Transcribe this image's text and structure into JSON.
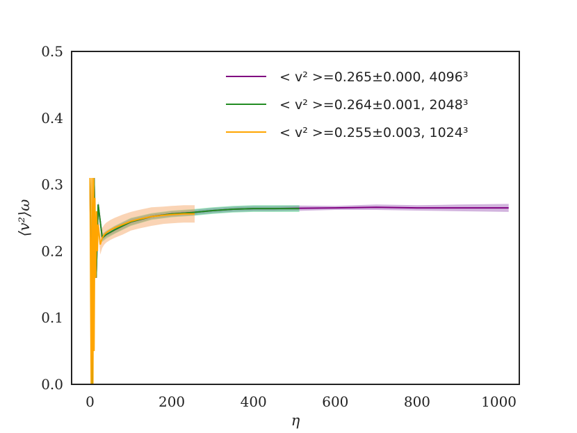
{
  "chart_data": {
    "type": "line",
    "xlabel": "η",
    "ylabel": "⟨v²⟩ω",
    "xlim": [
      -45,
      1050
    ],
    "ylim": [
      0.0,
      0.5
    ],
    "xticks": [
      0,
      200,
      400,
      600,
      800,
      1000
    ],
    "yticks": [
      0.0,
      0.1,
      0.2,
      0.3,
      0.4,
      0.5
    ],
    "xtick_labels": [
      "0",
      "200",
      "400",
      "600",
      "800",
      "1000"
    ],
    "ytick_labels": [
      "0.0",
      "0.1",
      "0.2",
      "0.3",
      "0.4",
      "0.5"
    ],
    "grid": false,
    "legend_position": "top-right",
    "series": [
      {
        "name": "< v² >=0.265±0.000, 4096³",
        "color": "#800080",
        "band_color": "#9b59b6",
        "x": [
          0,
          5,
          10,
          15,
          20,
          30,
          40,
          60,
          80,
          100,
          150,
          200,
          250,
          300,
          350,
          400,
          450,
          512,
          600,
          700,
          800,
          900,
          1024
        ],
        "y": [
          0.31,
          0.0,
          0.31,
          0.16,
          0.27,
          0.22,
          0.225,
          0.232,
          0.238,
          0.244,
          0.252,
          0.256,
          0.258,
          0.261,
          0.263,
          0.264,
          0.264,
          0.2645,
          0.265,
          0.266,
          0.265,
          0.265,
          0.265
        ],
        "band": [
          0,
          0,
          0,
          0,
          0.004,
          0.004,
          0.004,
          0.005,
          0.005,
          0.005,
          0.004,
          0.004,
          0.004,
          0.004,
          0.004,
          0.004,
          0.004,
          0.004,
          0.003,
          0.004,
          0.004,
          0.005,
          0.006
        ]
      },
      {
        "name": "< v² >=0.264±0.001, 2048³",
        "color": "#228b22",
        "band_color": "#2ecc71",
        "x": [
          0,
          5,
          10,
          15,
          20,
          30,
          40,
          60,
          80,
          100,
          150,
          200,
          250,
          300,
          350,
          400,
          450,
          512
        ],
        "y": [
          0.31,
          0.0,
          0.31,
          0.16,
          0.27,
          0.22,
          0.225,
          0.232,
          0.238,
          0.244,
          0.252,
          0.256,
          0.258,
          0.261,
          0.263,
          0.264,
          0.264,
          0.264
        ],
        "band": [
          0,
          0,
          0,
          0,
          0.005,
          0.006,
          0.006,
          0.006,
          0.006,
          0.006,
          0.005,
          0.005,
          0.005,
          0.005,
          0.005,
          0.005,
          0.005,
          0.005
        ]
      },
      {
        "name": "< v² >=0.255±0.003, 1024³",
        "color": "#ffa500",
        "band_color": "#f5a05a",
        "x": [
          0,
          3,
          5,
          7,
          9,
          10,
          12,
          14,
          16,
          18,
          20,
          25,
          30,
          35,
          40,
          50,
          60,
          80,
          100,
          120,
          150,
          180,
          200,
          230,
          256
        ],
        "y": [
          0.31,
          0.0,
          0.31,
          0.0,
          0.31,
          0.05,
          0.28,
          0.16,
          0.26,
          0.2,
          0.24,
          0.21,
          0.22,
          0.225,
          0.228,
          0.232,
          0.235,
          0.24,
          0.245,
          0.248,
          0.252,
          0.254,
          0.255,
          0.256,
          0.256
        ],
        "band": [
          0,
          0,
          0,
          0,
          0,
          0,
          0,
          0,
          0,
          0,
          0.01,
          0.015,
          0.015,
          0.015,
          0.015,
          0.015,
          0.015,
          0.015,
          0.014,
          0.014,
          0.014,
          0.013,
          0.013,
          0.013,
          0.013
        ]
      }
    ]
  }
}
